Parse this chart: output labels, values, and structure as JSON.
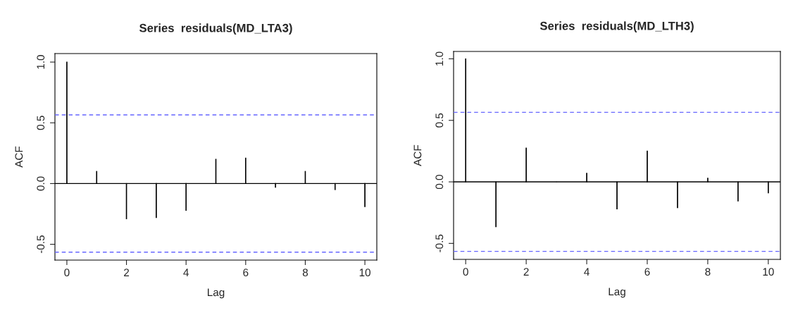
{
  "chart_data": [
    {
      "type": "bar",
      "title": "Series  residuals(MD_LTA3)",
      "xlabel": "Lag",
      "ylabel": "ACF",
      "x": [
        0,
        1,
        2,
        3,
        4,
        5,
        6,
        7,
        8,
        9,
        10
      ],
      "series": [
        {
          "color": "#000000",
          "values": [
            1.0,
            0.1,
            -0.29,
            -0.28,
            -0.22,
            0.2,
            0.21,
            -0.03,
            0.1,
            -0.05,
            -0.19
          ]
        }
      ],
      "xlim": [
        -0.4,
        10.4
      ],
      "xticks": [
        0,
        2,
        4,
        6,
        8,
        10
      ],
      "ylim": [
        -0.63,
        1.07
      ],
      "yticks": [
        {
          "value": -0.5,
          "label": "-0.5"
        },
        {
          "value": 0,
          "label": "0.0"
        },
        0.5,
        {
          "value": 1,
          "label": "1.0"
        }
      ],
      "ref_lines": [
        {
          "axis": "y",
          "value": 0,
          "color": "#000000",
          "line_style": "solid"
        },
        {
          "axis": "y",
          "value": 0.565,
          "color": "#6666ff",
          "line_style": "dashed"
        },
        {
          "axis": "y",
          "value": -0.565,
          "color": "#6666ff",
          "line_style": "dashed"
        }
      ],
      "grid": false,
      "legend": false
    },
    {
      "type": "bar",
      "title": "Series  residuals(MD_LTH3)",
      "xlabel": "Lag",
      "ylabel": "ACF",
      "x": [
        0,
        1,
        2,
        3,
        4,
        5,
        6,
        7,
        8,
        9,
        10
      ],
      "series": [
        {
          "color": "#000000",
          "values": [
            1.0,
            -0.365,
            0.275,
            0.0,
            0.07,
            -0.22,
            0.25,
            -0.21,
            0.03,
            -0.155,
            -0.09
          ]
        }
      ],
      "xlim": [
        -0.4,
        10.4
      ],
      "xticks": [
        0,
        2,
        4,
        6,
        8,
        10
      ],
      "ylim": [
        -0.63,
        1.06
      ],
      "yticks": [
        {
          "value": -0.5,
          "label": "-0.5"
        },
        {
          "value": 0,
          "label": "0.0"
        },
        0.5,
        {
          "value": 1,
          "label": "1.0"
        }
      ],
      "ref_lines": [
        {
          "axis": "y",
          "value": 0,
          "color": "#000000",
          "line_style": "solid"
        },
        {
          "axis": "y",
          "value": 0.565,
          "color": "#6666ff",
          "line_style": "dashed"
        },
        {
          "axis": "y",
          "value": -0.565,
          "color": "#6666ff",
          "line_style": "dashed"
        }
      ],
      "grid": false,
      "legend": false
    }
  ]
}
